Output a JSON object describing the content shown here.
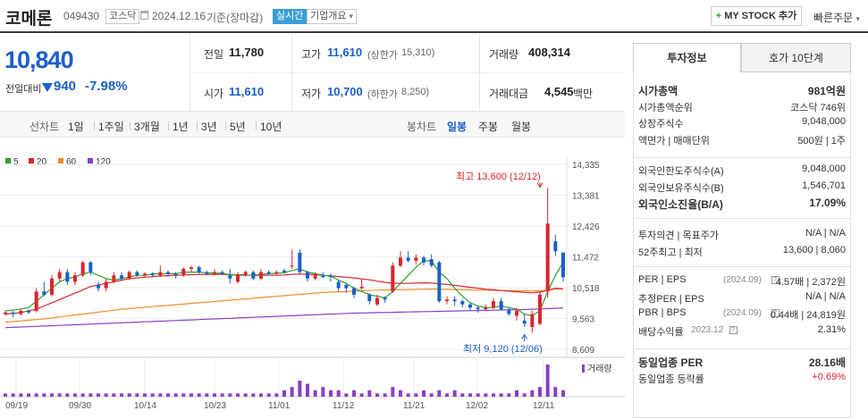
{
  "header": {
    "name": "코메론",
    "code": "049430",
    "market": "코스닥",
    "date": "2024.12.16",
    "basis": "기준(장마감)",
    "realtime": "실시간",
    "overview": "기업개요",
    "overview_arrow": "▾",
    "mystock": "MY STOCK 추가",
    "mystock_icon": "+",
    "quick_order": "빠른주문",
    "quick_order_arrow": "▾"
  },
  "price": {
    "current": "10,840",
    "change_label": "전일대비",
    "change": "940",
    "change_pct": "-7.98%",
    "arrow": "down-triangle"
  },
  "stats": {
    "prev_label": "전일",
    "prev": "11,780",
    "high_label": "고가",
    "high": "11,610",
    "upper_label": "(상한가",
    "upper": "15,310)",
    "volume_label": "거래량",
    "volume": "408,314",
    "open_label": "시가",
    "open": "11,610",
    "low_label": "저가",
    "low": "10,700",
    "lower_label": "(하한가",
    "lower": "8,250)",
    "amount_label": "거래대금",
    "amount": "4,545",
    "amount_unit": "백만"
  },
  "period_tabs": [
    "선차트",
    "1일",
    "1주일",
    "3개월",
    "1년",
    "3년",
    "5년",
    "10년"
  ],
  "candle_tabs": [
    "봉차트",
    "일봉",
    "주봉",
    "월봉"
  ],
  "chart_data": {
    "type": "candlestick",
    "legend": [
      {
        "name": "5",
        "color": "#2ca02c"
      },
      {
        "name": "20",
        "color": "#d8262f"
      },
      {
        "name": "60",
        "color": "#f28c28"
      },
      {
        "name": "120",
        "color": "#8a3fc4"
      }
    ],
    "y_ticks": [
      "14,335",
      "13,381",
      "12,426",
      "11,472",
      "10,518",
      "9,563",
      "8,609"
    ],
    "y_range": [
      8609,
      14335
    ],
    "x_ticks": [
      "09/19",
      "09/30",
      "10/14",
      "10/23",
      "11/01",
      "11/12",
      "11/21",
      "12/02",
      "12/11"
    ],
    "high_annotation": "최고 13,600 (12/12)",
    "low_annotation": "최저 9,120 (12/06)",
    "volume_legend": "거래량",
    "candles": [
      {
        "o": 9700,
        "c": 9750,
        "h": 9800,
        "l": 9650
      },
      {
        "o": 9750,
        "c": 9700,
        "h": 9800,
        "l": 9600
      },
      {
        "o": 9700,
        "c": 9800,
        "h": 9850,
        "l": 9650
      },
      {
        "o": 9800,
        "c": 9750,
        "h": 9850,
        "l": 9700
      },
      {
        "o": 9800,
        "c": 10400,
        "h": 10500,
        "l": 9750
      },
      {
        "o": 10400,
        "c": 10300,
        "h": 10700,
        "l": 10250
      },
      {
        "o": 10300,
        "c": 10800,
        "h": 10900,
        "l": 10250
      },
      {
        "o": 10800,
        "c": 11000,
        "h": 11100,
        "l": 10700
      },
      {
        "o": 11000,
        "c": 10700,
        "h": 11100,
        "l": 10600
      },
      {
        "o": 10700,
        "c": 10900,
        "h": 11000,
        "l": 10600
      },
      {
        "o": 10900,
        "c": 11300,
        "h": 11350,
        "l": 10850
      },
      {
        "o": 11300,
        "c": 11000,
        "h": 11350,
        "l": 10900
      },
      {
        "o": 10600,
        "c": 10500,
        "h": 10700,
        "l": 10400
      },
      {
        "o": 10500,
        "c": 10700,
        "h": 10800,
        "l": 10400
      },
      {
        "o": 10700,
        "c": 10900,
        "h": 11000,
        "l": 10650
      },
      {
        "o": 10900,
        "c": 10800,
        "h": 11000,
        "l": 10750
      },
      {
        "o": 10800,
        "c": 11000,
        "h": 11050,
        "l": 10750
      },
      {
        "o": 11000,
        "c": 10900,
        "h": 11050,
        "l": 10850
      },
      {
        "o": 10900,
        "c": 10950,
        "h": 11000,
        "l": 10850
      },
      {
        "o": 10950,
        "c": 10900,
        "h": 11000,
        "l": 10850
      },
      {
        "o": 10900,
        "c": 11000,
        "h": 11200,
        "l": 10850
      },
      {
        "o": 11000,
        "c": 10950,
        "h": 11050,
        "l": 10850
      },
      {
        "o": 10950,
        "c": 10900,
        "h": 11000,
        "l": 10800
      },
      {
        "o": 10900,
        "c": 11100,
        "h": 11150,
        "l": 10850
      },
      {
        "o": 11100,
        "c": 11150,
        "h": 11200,
        "l": 11000
      },
      {
        "o": 11150,
        "c": 11000,
        "h": 11200,
        "l": 10950
      },
      {
        "o": 11000,
        "c": 10950,
        "h": 11050,
        "l": 10900
      },
      {
        "o": 10950,
        "c": 11000,
        "h": 11100,
        "l": 10900
      },
      {
        "o": 11000,
        "c": 10950,
        "h": 11050,
        "l": 10900
      },
      {
        "o": 10900,
        "c": 10800,
        "h": 11100,
        "l": 10650
      },
      {
        "o": 10700,
        "c": 10900,
        "h": 11000,
        "l": 10650
      },
      {
        "o": 10900,
        "c": 11000,
        "h": 11050,
        "l": 10850
      },
      {
        "o": 11000,
        "c": 10800,
        "h": 11050,
        "l": 10750
      },
      {
        "o": 10800,
        "c": 11000,
        "h": 11100,
        "l": 10750
      },
      {
        "o": 11000,
        "c": 10950,
        "h": 11050,
        "l": 10900
      },
      {
        "o": 10950,
        "c": 11000,
        "h": 11050,
        "l": 10900
      },
      {
        "o": 11050,
        "c": 11000,
        "h": 11100,
        "l": 10950
      },
      {
        "o": 11200,
        "c": 11200,
        "h": 11700,
        "l": 11100
      },
      {
        "o": 11600,
        "c": 11000,
        "h": 11700,
        "l": 10950
      },
      {
        "o": 11000,
        "c": 10800,
        "h": 11050,
        "l": 10700
      },
      {
        "o": 10800,
        "c": 10900,
        "h": 11000,
        "l": 10750
      },
      {
        "o": 10900,
        "c": 10850,
        "h": 11000,
        "l": 10800
      },
      {
        "o": 10900,
        "c": 10850,
        "h": 10950,
        "l": 10700
      },
      {
        "o": 10700,
        "c": 10500,
        "h": 10750,
        "l": 10400
      },
      {
        "o": 10600,
        "c": 10500,
        "h": 10650,
        "l": 10350
      },
      {
        "o": 10500,
        "c": 10300,
        "h": 10550,
        "l": 10200
      },
      {
        "o": 10500,
        "c": 10550,
        "h": 10800,
        "l": 10450
      },
      {
        "o": 10300,
        "c": 10100,
        "h": 10350,
        "l": 10000
      },
      {
        "o": 10000,
        "c": 10200,
        "h": 10300,
        "l": 9950
      },
      {
        "o": 10200,
        "c": 10150,
        "h": 10250,
        "l": 10050
      },
      {
        "o": 10400,
        "c": 11200,
        "h": 11300,
        "l": 10350
      },
      {
        "o": 11200,
        "c": 11450,
        "h": 11650,
        "l": 11150
      },
      {
        "o": 11450,
        "c": 11350,
        "h": 11650,
        "l": 11300
      },
      {
        "o": 11350,
        "c": 11450,
        "h": 11550,
        "l": 11250
      },
      {
        "o": 11450,
        "c": 11300,
        "h": 11500,
        "l": 11200
      },
      {
        "o": 11400,
        "c": 11200,
        "h": 11550,
        "l": 11150
      },
      {
        "o": 11300,
        "c": 10100,
        "h": 11350,
        "l": 10050
      },
      {
        "o": 10100,
        "c": 10150,
        "h": 10250,
        "l": 10000
      },
      {
        "o": 10150,
        "c": 10100,
        "h": 10250,
        "l": 9950
      },
      {
        "o": 10100,
        "c": 10000,
        "h": 10150,
        "l": 9900
      },
      {
        "o": 10000,
        "c": 9900,
        "h": 10050,
        "l": 9800
      },
      {
        "o": 9900,
        "c": 9850,
        "h": 9950,
        "l": 9750
      },
      {
        "o": 9850,
        "c": 9900,
        "h": 10000,
        "l": 9800
      },
      {
        "o": 9900,
        "c": 10100,
        "h": 10200,
        "l": 9850
      },
      {
        "o": 10100,
        "c": 9850,
        "h": 10200,
        "l": 9800
      },
      {
        "o": 9850,
        "c": 9700,
        "h": 9900,
        "l": 9650
      },
      {
        "o": 9650,
        "c": 9800,
        "h": 9900,
        "l": 9500
      },
      {
        "o": 9500,
        "c": 9400,
        "h": 9700,
        "l": 9300
      },
      {
        "o": 9300,
        "c": 9700,
        "h": 9800,
        "l": 9120
      },
      {
        "o": 9400,
        "c": 10300,
        "h": 10400,
        "l": 9350
      },
      {
        "o": 10400,
        "c": 12500,
        "h": 13600,
        "l": 10200
      },
      {
        "o": 11950,
        "c": 11650,
        "h": 12150,
        "l": 11500
      },
      {
        "o": 11610,
        "c": 10840,
        "h": 11610,
        "l": 10700
      }
    ],
    "ma5": [
      9800,
      9820,
      9860,
      9900,
      10100,
      10300,
      10500,
      10700,
      10800,
      10850,
      10950,
      11000,
      10900,
      10800,
      10750,
      10800,
      10850,
      10900,
      10900,
      10950,
      10950,
      10950,
      10950,
      11000,
      11000,
      11000,
      10980,
      10970,
      10960,
      10920,
      10900,
      10900,
      10910,
      10930,
      10950,
      10960,
      10980,
      11050,
      11100,
      11000,
      10950,
      10900,
      10880,
      10750,
      10650,
      10500,
      10400,
      10300,
      10250,
      10200,
      10400,
      10650,
      10900,
      11150,
      11350,
      11350,
      11000,
      10800,
      10500,
      10250,
      10050,
      9950,
      9900,
      9900,
      9950,
      9900,
      9850,
      9700,
      9650,
      9800,
      10400,
      10900,
      11300
    ],
    "ma20": [
      9700,
      9720,
      9750,
      9800,
      9850,
      9950,
      10050,
      10150,
      10250,
      10350,
      10450,
      10550,
      10600,
      10650,
      10700,
      10750,
      10800,
      10820,
      10840,
      10860,
      10880,
      10890,
      10900,
      10910,
      10920,
      10925,
      10930,
      10930,
      10930,
      10925,
      10920,
      10910,
      10900,
      10900,
      10900,
      10900,
      10910,
      10930,
      10940,
      10930,
      10920,
      10900,
      10880,
      10860,
      10840,
      10820,
      10790,
      10760,
      10720,
      10680,
      10660,
      10650,
      10650,
      10660,
      10670,
      10660,
      10640,
      10620,
      10590,
      10560,
      10530,
      10500,
      10470,
      10450,
      10430,
      10410,
      10390,
      10370,
      10360,
      10380,
      10440,
      10500,
      10480
    ],
    "ma60": [
      9450,
      9470,
      9490,
      9510,
      9530,
      9550,
      9580,
      9610,
      9640,
      9670,
      9700,
      9730,
      9760,
      9790,
      9820,
      9850,
      9870,
      9890,
      9910,
      9930,
      9950,
      9970,
      9990,
      10010,
      10030,
      10050,
      10070,
      10090,
      10110,
      10130,
      10150,
      10170,
      10190,
      10210,
      10230,
      10250,
      10270,
      10290,
      10310,
      10330,
      10350,
      10370,
      10380,
      10390,
      10400,
      10410,
      10420,
      10430,
      10440,
      10445,
      10450,
      10455,
      10460,
      10465,
      10470,
      10475,
      10470,
      10465,
      10460,
      10455,
      10450,
      10445,
      10440,
      10435,
      10430,
      10425,
      10420,
      10418,
      10416,
      10420,
      10440,
      10470,
      10480
    ],
    "ma120": [
      9280,
      9290,
      9300,
      9310,
      9320,
      9330,
      9340,
      9350,
      9360,
      9370,
      9380,
      9390,
      9400,
      9410,
      9420,
      9430,
      9440,
      9450,
      9460,
      9470,
      9480,
      9490,
      9500,
      9510,
      9520,
      9530,
      9540,
      9550,
      9560,
      9570,
      9580,
      9590,
      9600,
      9610,
      9620,
      9630,
      9640,
      9650,
      9660,
      9670,
      9680,
      9690,
      9700,
      9710,
      9720,
      9730,
      9735,
      9740,
      9745,
      9750,
      9755,
      9760,
      9765,
      9770,
      9775,
      9780,
      9785,
      9790,
      9795,
      9800,
      9805,
      9810,
      9815,
      9820,
      9825,
      9830,
      9835,
      9840,
      9850,
      9860,
      9870,
      9880,
      9890
    ],
    "volume": [
      1,
      1,
      1,
      1,
      1,
      1,
      1,
      1,
      1,
      1,
      1,
      1,
      1,
      1,
      1,
      1,
      1,
      1,
      1,
      1,
      1,
      1,
      1,
      1,
      1,
      1,
      1,
      1,
      1,
      1,
      1,
      1,
      1,
      1,
      1,
      1,
      2,
      3,
      5,
      4,
      2,
      3,
      2,
      2,
      1,
      2,
      1,
      2,
      1,
      1,
      3,
      2,
      1,
      1,
      2,
      1,
      2,
      1,
      2,
      1,
      1,
      1,
      1,
      1,
      1,
      1,
      2,
      1,
      2,
      3,
      10,
      3,
      2
    ]
  },
  "right_panel": {
    "tabs": [
      "투자정보",
      "호가 10단계"
    ],
    "rows1": [
      {
        "label": "시가총액",
        "value": "981억원",
        "bold": true
      },
      {
        "label": "시가총액순위",
        "value": "코스닥 746위"
      },
      {
        "label": "상장주식수",
        "value": "9,048,000"
      },
      {
        "label": "액면가 | 매매단위",
        "value": "500원 | 1주"
      }
    ],
    "rows2": [
      {
        "label": "외국인한도주식수(A)",
        "value": "9,048,000"
      },
      {
        "label": "외국인보유주식수(B)",
        "value": "1,546,701"
      },
      {
        "label": "외국인소진율(B/A)",
        "value": "17.09%",
        "bold": true
      }
    ],
    "rows3": [
      {
        "label": "투자의견 | 목표주가",
        "value": "N/A | N/A"
      },
      {
        "label": "52주최고 | 최저",
        "value": "13,600 | 8,060"
      }
    ],
    "rows4": [
      {
        "label": "PER | EPS",
        "sub": "(2024.09)",
        "value": "4.57배 | 2,372원"
      },
      {
        "label": "추정PER | EPS",
        "value": "N/A | N/A"
      },
      {
        "label": "PBR | BPS",
        "sub": "(2024.09)",
        "value": "0.44배 | 24,819원"
      },
      {
        "label": "배당수익률",
        "sub": "2023.12",
        "value": "2.31%"
      }
    ],
    "rows5": [
      {
        "label": "동일업종 PER",
        "value": "28.16배",
        "bold": true
      },
      {
        "label": "동일업종 등락률",
        "value": "+0.69%",
        "red": true
      }
    ]
  }
}
